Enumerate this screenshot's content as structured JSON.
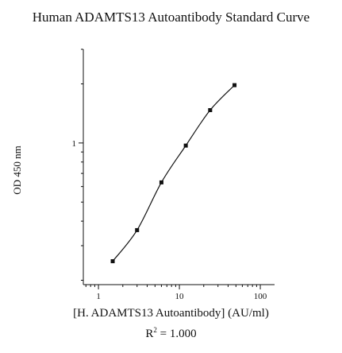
{
  "chart_data": {
    "type": "line",
    "title": "Human ADAMTS13 Autoantibody Standard Curve",
    "xlabel": "[H. ADAMTS13 Autoantibody] (AU/ml)",
    "ylabel": "OD 450 nm",
    "x_scale": "log",
    "y_scale": "log",
    "xlim": [
      0.65,
      150
    ],
    "ylim": [
      0.19,
      3.0
    ],
    "x_ticks": [
      {
        "value": 1,
        "label": "1"
      },
      {
        "value": 10,
        "label": "10"
      },
      {
        "value": 100,
        "label": "100"
      }
    ],
    "y_ticks": [
      {
        "value": 1,
        "label": "1"
      }
    ],
    "series": [
      {
        "x": [
          1.5,
          3,
          6,
          12,
          24,
          48
        ],
        "y": [
          0.25,
          0.36,
          0.63,
          0.97,
          1.47,
          1.97
        ]
      }
    ],
    "r_squared_label": "R",
    "r_squared_exp": "2",
    "r_squared_value": "= 1.000",
    "grid": false,
    "legend": "none"
  }
}
